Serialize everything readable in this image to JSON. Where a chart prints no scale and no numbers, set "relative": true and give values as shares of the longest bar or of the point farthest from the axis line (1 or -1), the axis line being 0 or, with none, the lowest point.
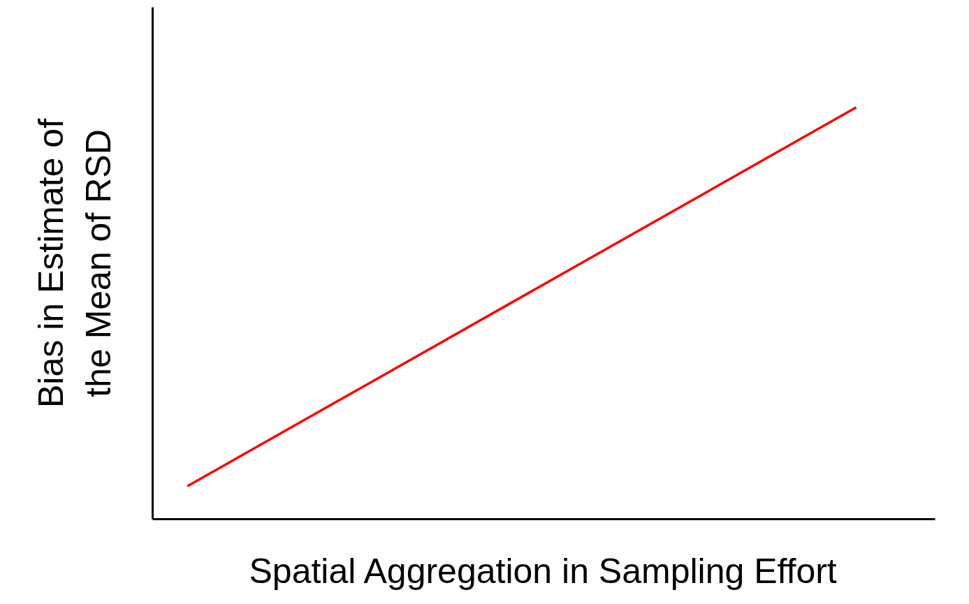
{
  "chart_data": {
    "type": "line",
    "relative": true,
    "xlabel": "Spatial Aggregation in Sampling Effort",
    "ylabel": "Bias in Estimate of\nthe Mean of RSD",
    "categories": [
      null,
      null
    ],
    "series": [
      {
        "color": "#ff0000",
        "values": [
          0.08,
          1
        ]
      }
    ],
    "grid": false
  }
}
